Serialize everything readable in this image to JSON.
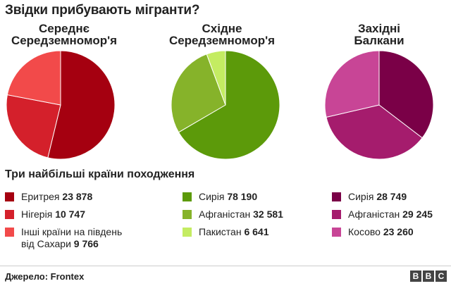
{
  "title": "Звідки прибувають мігранти?",
  "subtitle": "Три найбільші країни походження",
  "source": "Джерело: Frontex",
  "logo": [
    "B",
    "B",
    "C"
  ],
  "chart_data": [
    {
      "type": "pie",
      "title": [
        "Середнє",
        "Середземномор'я"
      ],
      "slices": [
        {
          "label": "Еритрея",
          "value": 23878,
          "value_text": "23 878",
          "color": "#a50010"
        },
        {
          "label": "Нігерія",
          "value": 10747,
          "value_text": "10 747",
          "color": "#d4202b"
        },
        {
          "label": "Інші країни на південь від Сахари",
          "label_lines": [
            "Інші країни на південь",
            "від Сахари"
          ],
          "value": 9766,
          "value_text": "9 766",
          "color": "#f24a4a"
        }
      ]
    },
    {
      "type": "pie",
      "title": [
        "Східне",
        "Середземномор'я"
      ],
      "slices": [
        {
          "label": "Сирія",
          "value": 78190,
          "value_text": "78 190",
          "color": "#5c9a0a"
        },
        {
          "label": "Афганістан",
          "value": 32581,
          "value_text": "32 581",
          "color": "#86b32a"
        },
        {
          "label": "Пакистан",
          "value": 6641,
          "value_text": "6 641",
          "color": "#c4ec62"
        }
      ]
    },
    {
      "type": "pie",
      "title": [
        "Західні",
        "Балкани"
      ],
      "slices": [
        {
          "label": "Сирія",
          "value": 28749,
          "value_text": "28 749",
          "color": "#7a0047"
        },
        {
          "label": "Афганістан",
          "value": 29245,
          "value_text": "29 245",
          "color": "#a51c6d"
        },
        {
          "label": "Косово",
          "value": 23260,
          "value_text": "23 260",
          "color": "#c84596"
        }
      ]
    }
  ]
}
